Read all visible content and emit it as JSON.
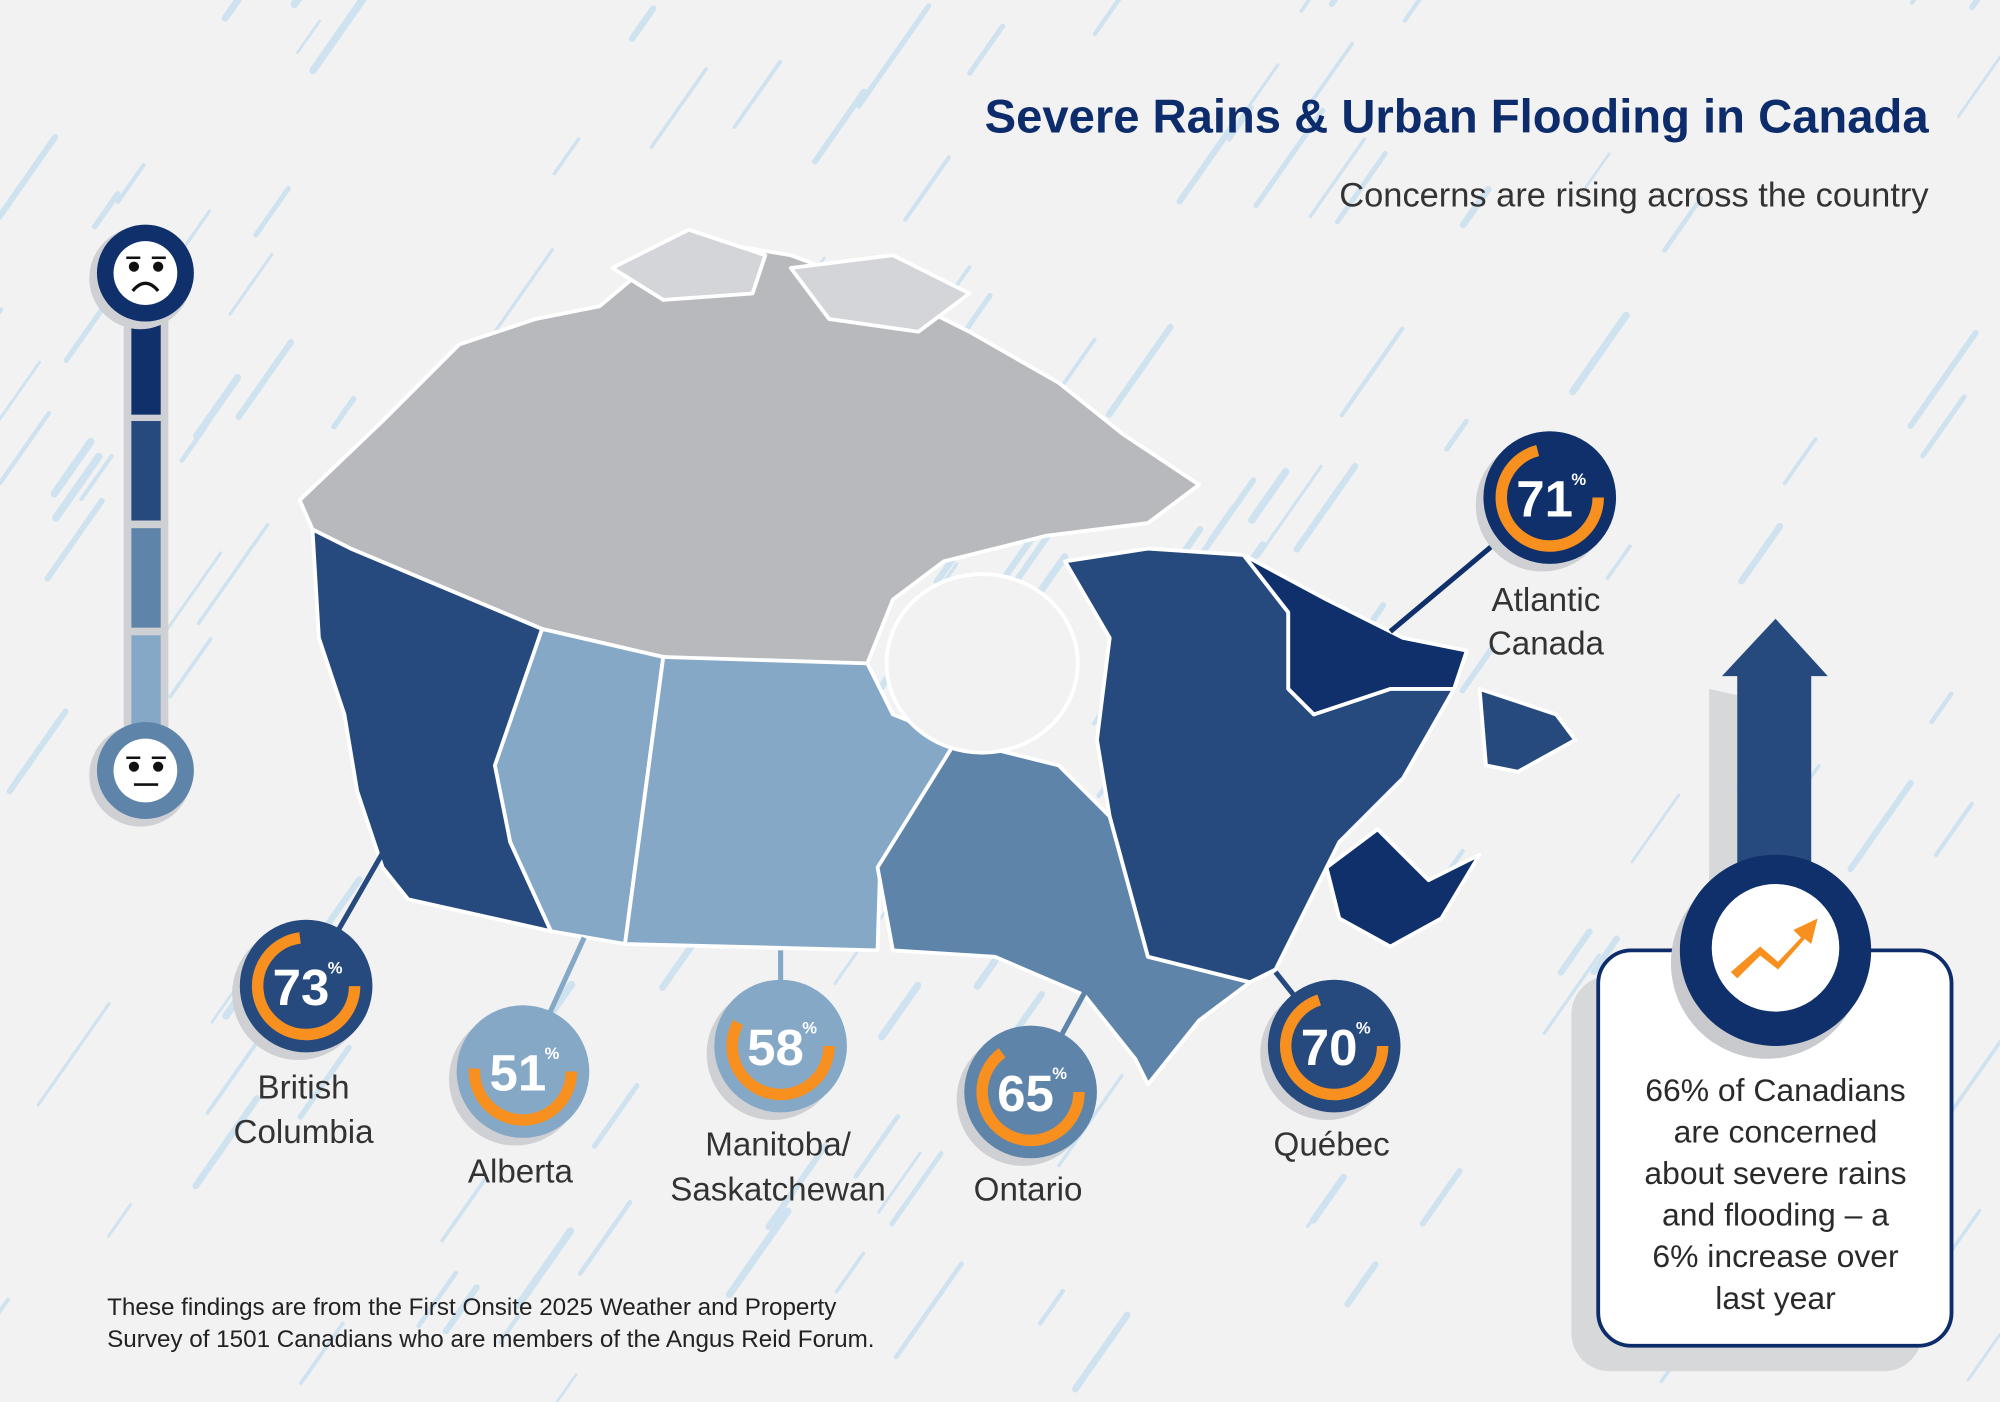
{
  "header": {
    "title": "Severe Rains & Urban Flooding in Canada",
    "subtitle": "Concerns are rising across the country"
  },
  "colors": {
    "title": "#0d2c6b",
    "darkest": "#10306b",
    "dark": "#264a7e",
    "medium": "#5f84aa",
    "light": "#86a8c7",
    "accent_orange": "#f7901e",
    "territories_grey": "#b8b9bc",
    "rain": "#cfe2f0"
  },
  "scale": {
    "top_icon": "sad-face-icon",
    "bottom_icon": "neutral-face-icon"
  },
  "regions": [
    {
      "name_lines": [
        "British",
        "Columbia"
      ],
      "value": 73,
      "pct_label": "73",
      "unit": "%"
    },
    {
      "name_lines": [
        "Alberta"
      ],
      "value": 51,
      "pct_label": "51",
      "unit": "%"
    },
    {
      "name_lines": [
        "Manitoba/",
        "Saskatchewan"
      ],
      "value": 58,
      "pct_label": "58",
      "unit": "%"
    },
    {
      "name_lines": [
        "Ontario"
      ],
      "value": 65,
      "pct_label": "65",
      "unit": "%"
    },
    {
      "name_lines": [
        "Québec"
      ],
      "value": 70,
      "pct_label": "70",
      "unit": "%"
    },
    {
      "name_lines": [
        "Atlantic",
        "Canada"
      ],
      "value": 71,
      "pct_label": "71",
      "unit": "%"
    }
  ],
  "callout": {
    "icon": "trend-up-arrow-icon",
    "lines": [
      "66% of Canadians",
      "are concerned",
      "about severe rains",
      "and flooding – a",
      "6% increase over",
      "last year"
    ]
  },
  "footnote": {
    "lines": [
      "These findings are from the First Onsite 2025 Weather and Property",
      "Survey of 1501 Canadians who are members of the Angus Reid Forum."
    ]
  }
}
